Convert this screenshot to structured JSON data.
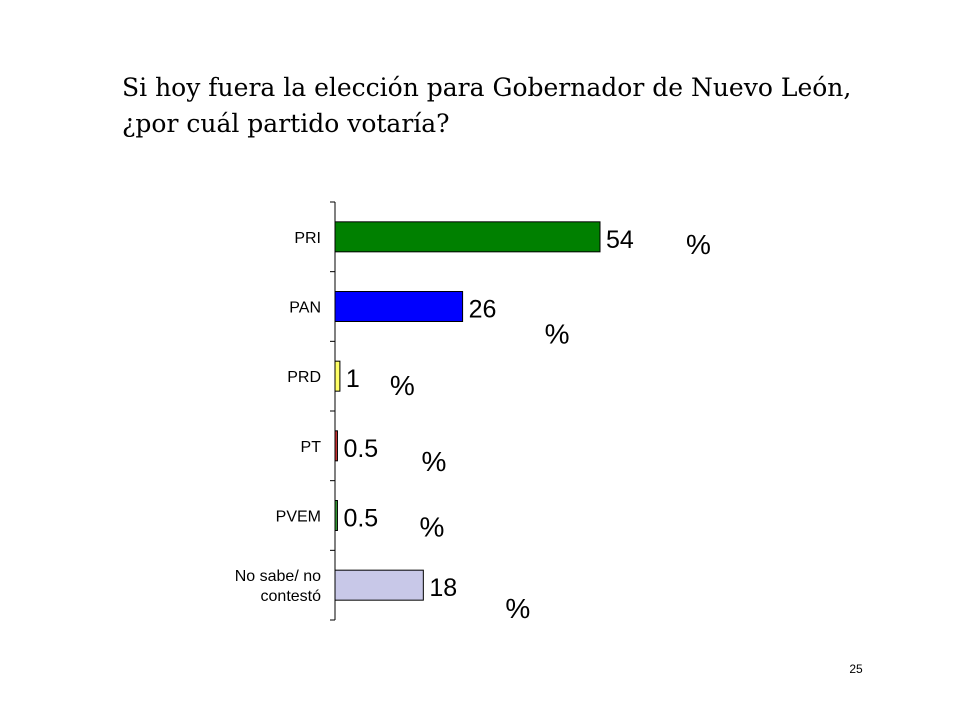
{
  "title": {
    "line1": "Si hoy fuera la elección para Gobernador de Nuevo León,",
    "line2": "¿por cuál partido votaría?"
  },
  "page_number": "25",
  "chart_data": {
    "type": "bar",
    "orientation": "horizontal",
    "categories": [
      "PRI",
      "PAN",
      "PRD",
      "PT",
      "PVEM",
      "No sabe/ no contestó"
    ],
    "values": [
      54,
      26,
      1,
      0.5,
      0.5,
      18
    ],
    "value_labels": [
      "54",
      "26",
      "1",
      "0.5",
      "0.5",
      "18"
    ],
    "unit_label": "%",
    "bar_colors": [
      "#008000",
      "#0000ff",
      "#ffff66",
      "#cc3333",
      "#339933",
      "#c8c8e8"
    ],
    "xlim": [
      0,
      54
    ],
    "grid": false,
    "legend": "none"
  }
}
